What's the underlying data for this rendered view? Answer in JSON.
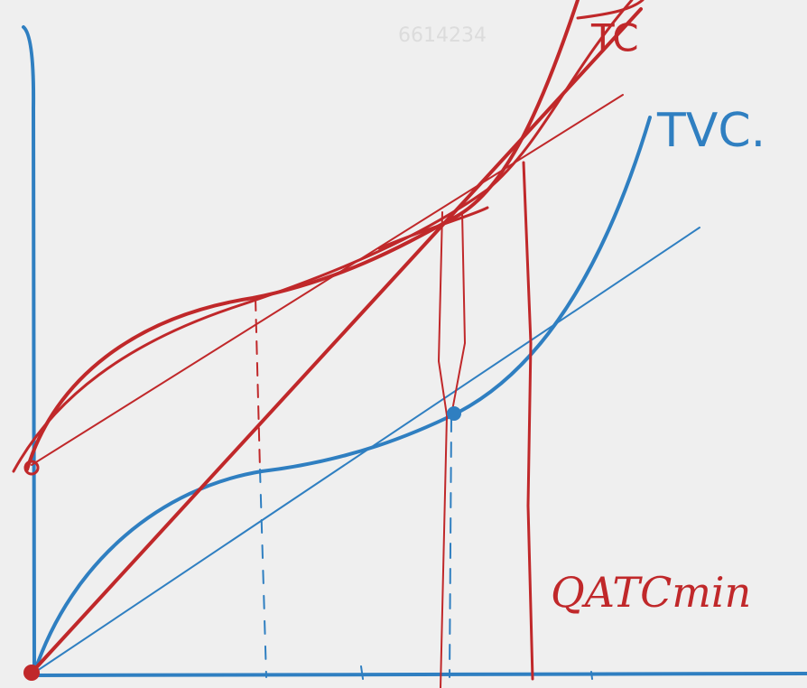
{
  "watermark": "6614234",
  "labels": {
    "tc": "TC",
    "tvc": "TVC.",
    "quantity": "QATCmin"
  }
}
